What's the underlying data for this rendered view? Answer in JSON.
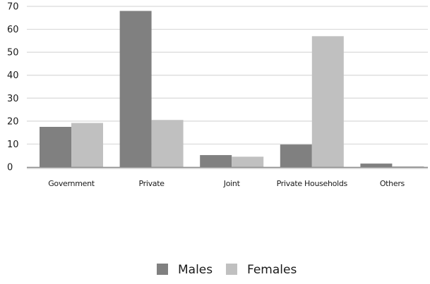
{
  "chart_data": {
    "type": "bar",
    "title": "",
    "xlabel": "",
    "ylabel": "",
    "categories": [
      "Government",
      "Private",
      "Joint",
      "Private Households",
      "Others"
    ],
    "series": [
      {
        "name": "Males",
        "values": [
          17.5,
          68,
          5.2,
          9.8,
          1.5
        ],
        "color": "#808080"
      },
      {
        "name": "Females",
        "values": [
          19.2,
          20.5,
          4.5,
          57,
          0.3
        ],
        "color": "#c0c0c0"
      }
    ],
    "ylim": [
      0,
      70
    ],
    "yticks": [
      0,
      10,
      20,
      30,
      40,
      50,
      60,
      70
    ],
    "grid": true,
    "legend_position": "bottom"
  }
}
